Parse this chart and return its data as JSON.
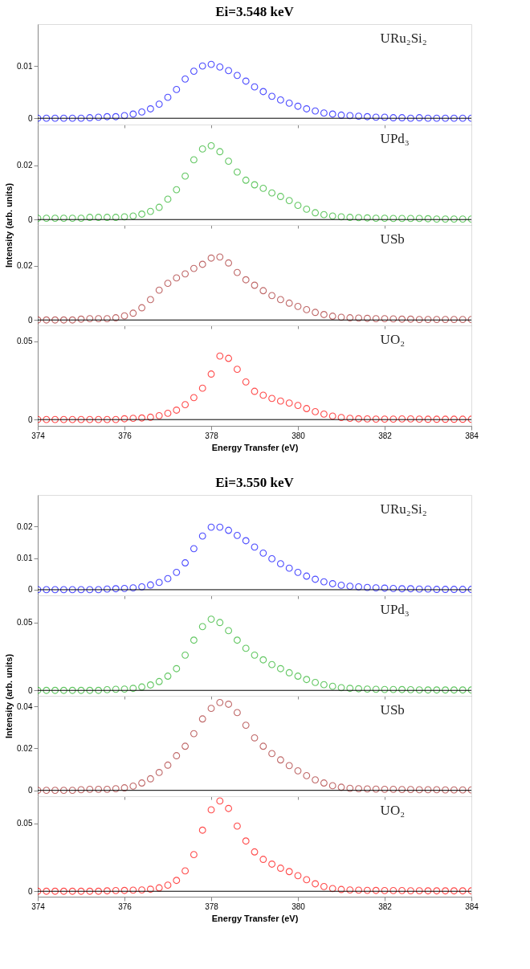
{
  "chart_data": [
    {
      "type": "scatter",
      "title": "Ei=3.548 keV",
      "marker": "circle",
      "tick_labels": "y",
      "xlim": [
        374,
        384
      ],
      "xticks": [
        374,
        376,
        378,
        380,
        382,
        384
      ],
      "ylim": [
        -0.0012,
        0.018
      ],
      "yticks": [
        0,
        0.01
      ],
      "ref_lines": [
        {
          "axis": "y",
          "value": 0
        }
      ],
      "x": [
        374.0,
        374.2,
        374.4,
        374.6,
        374.8,
        375.0,
        375.2,
        375.4,
        375.6,
        375.8,
        376.0,
        376.2,
        376.4,
        376.6,
        376.8,
        377.0,
        377.2,
        377.4,
        377.6,
        377.8,
        378.0,
        378.2,
        378.4,
        378.6,
        378.8,
        379.0,
        379.2,
        379.4,
        379.6,
        379.8,
        380.0,
        380.2,
        380.4,
        380.6,
        380.8,
        381.0,
        381.2,
        381.4,
        381.6,
        381.8,
        382.0,
        382.2,
        382.4,
        382.6,
        382.8,
        383.0,
        383.2,
        383.4,
        383.6,
        383.8,
        384.0
      ],
      "series": [
        {
          "name": "URu₂Si₂",
          "color": "#0000ff",
          "values": [
            0,
            0,
            0,
            0,
            0,
            0,
            0.0001,
            0.0002,
            0.0003,
            0.0003,
            0.0005,
            0.0008,
            0.0012,
            0.0018,
            0.0027,
            0.004,
            0.0055,
            0.0075,
            0.009,
            0.01,
            0.0103,
            0.0098,
            0.0091,
            0.0082,
            0.0071,
            0.006,
            0.0051,
            0.0042,
            0.0035,
            0.0029,
            0.0023,
            0.0018,
            0.0014,
            0.001,
            0.0008,
            0.0006,
            0.0005,
            0.0004,
            0.0003,
            0.0002,
            0.0002,
            0.0001,
            0.0001,
            0,
            0.0001,
            0,
            0,
            0,
            0,
            0,
            0
          ]
        }
      ]
    },
    {
      "type": "scatter",
      "ylabel": "Intensity (arb. units)",
      "marker": "circle",
      "tick_labels": "y",
      "xlim": [
        374,
        384
      ],
      "xticks": [
        374,
        376,
        378,
        380,
        382,
        384
      ],
      "ylim": [
        -0.002,
        0.035
      ],
      "yticks": [
        0,
        0.02
      ],
      "ref_lines": [
        {
          "axis": "y",
          "value": 0
        }
      ],
      "x": [
        374.0,
        374.2,
        374.4,
        374.6,
        374.8,
        375.0,
        375.2,
        375.4,
        375.6,
        375.8,
        376.0,
        376.2,
        376.4,
        376.6,
        376.8,
        377.0,
        377.2,
        377.4,
        377.6,
        377.8,
        378.0,
        378.2,
        378.4,
        378.6,
        378.8,
        379.0,
        379.2,
        379.4,
        379.6,
        379.8,
        380.0,
        380.2,
        380.4,
        380.6,
        380.8,
        381.0,
        381.2,
        381.4,
        381.6,
        381.8,
        382.0,
        382.2,
        382.4,
        382.6,
        382.8,
        383.0,
        383.2,
        383.4,
        383.6,
        383.8,
        384.0
      ],
      "series": [
        {
          "name": "UPd₃",
          "color": "#22b022",
          "values": [
            0.0005,
            0.0005,
            0.0005,
            0.0005,
            0.0005,
            0.0005,
            0.0008,
            0.0008,
            0.0008,
            0.0008,
            0.001,
            0.0013,
            0.002,
            0.003,
            0.0045,
            0.0075,
            0.011,
            0.016,
            0.022,
            0.026,
            0.0272,
            0.025,
            0.0215,
            0.0175,
            0.0145,
            0.0128,
            0.0115,
            0.0098,
            0.0085,
            0.007,
            0.0052,
            0.0038,
            0.0025,
            0.0018,
            0.0013,
            0.001,
            0.0008,
            0.0007,
            0.0006,
            0.0005,
            0.0005,
            0.0004,
            0.0004,
            0.0004,
            0.0004,
            0.0003,
            0.0002,
            0.0002,
            0.0002,
            0.0002,
            0.0002
          ]
        }
      ]
    },
    {
      "type": "scatter",
      "marker": "circle",
      "tick_labels": "y",
      "xlim": [
        374,
        384
      ],
      "xticks": [
        374,
        376,
        378,
        380,
        382,
        384
      ],
      "ylim": [
        -0.002,
        0.035
      ],
      "yticks": [
        0,
        0.02
      ],
      "ref_lines": [
        {
          "axis": "y",
          "value": 0
        }
      ],
      "x": [
        374.0,
        374.2,
        374.4,
        374.6,
        374.8,
        375.0,
        375.2,
        375.4,
        375.6,
        375.8,
        376.0,
        376.2,
        376.4,
        376.6,
        376.8,
        377.0,
        377.2,
        377.4,
        377.6,
        377.8,
        378.0,
        378.2,
        378.4,
        378.6,
        378.8,
        379.0,
        379.2,
        379.4,
        379.6,
        379.8,
        380.0,
        380.2,
        380.4,
        380.6,
        380.8,
        381.0,
        381.2,
        381.4,
        381.6,
        381.8,
        382.0,
        382.2,
        382.4,
        382.6,
        382.8,
        383.0,
        383.2,
        383.4,
        383.6,
        383.8,
        384.0
      ],
      "series": [
        {
          "name": "USb",
          "color": "#a52a2a",
          "values": [
            0,
            0,
            0,
            0,
            0,
            0.0003,
            0.0005,
            0.0005,
            0.0005,
            0.0008,
            0.0015,
            0.0025,
            0.0045,
            0.0075,
            0.011,
            0.0135,
            0.0155,
            0.017,
            0.019,
            0.0205,
            0.0228,
            0.0232,
            0.021,
            0.0175,
            0.0148,
            0.0128,
            0.0108,
            0.009,
            0.0075,
            0.0062,
            0.005,
            0.0038,
            0.0028,
            0.002,
            0.0014,
            0.001,
            0.0008,
            0.0007,
            0.0006,
            0.0005,
            0.0005,
            0.0004,
            0.0003,
            0.0003,
            0.0002,
            0.0002,
            0.0002,
            0.0002,
            0.0002,
            0.0002,
            0.0002
          ]
        }
      ]
    },
    {
      "type": "scatter",
      "xlabel": "Energy Transfer (eV)",
      "marker": "circle",
      "xlim": [
        374,
        384
      ],
      "xticks": [
        374,
        376,
        378,
        380,
        382,
        384
      ],
      "ylim": [
        -0.004,
        0.06
      ],
      "yticks": [
        0,
        0.05
      ],
      "ref_lines": [
        {
          "axis": "y",
          "value": 0
        }
      ],
      "x": [
        374.0,
        374.2,
        374.4,
        374.6,
        374.8,
        375.0,
        375.2,
        375.4,
        375.6,
        375.8,
        376.0,
        376.2,
        376.4,
        376.6,
        376.8,
        377.0,
        377.2,
        377.4,
        377.6,
        377.8,
        378.0,
        378.2,
        378.4,
        378.6,
        378.8,
        379.0,
        379.2,
        379.4,
        379.6,
        379.8,
        380.0,
        380.2,
        380.4,
        380.6,
        380.8,
        381.0,
        381.2,
        381.4,
        381.6,
        381.8,
        382.0,
        382.2,
        382.4,
        382.6,
        382.8,
        383.0,
        383.2,
        383.4,
        383.6,
        383.8,
        384.0
      ],
      "series": [
        {
          "name": "UO₂",
          "color": "#ff0000",
          "values": [
            0,
            0,
            0,
            0,
            0,
            0,
            0,
            0,
            0,
            0,
            0.0005,
            0.0008,
            0.001,
            0.0015,
            0.0025,
            0.004,
            0.006,
            0.0095,
            0.014,
            0.02,
            0.029,
            0.0405,
            0.039,
            0.032,
            0.024,
            0.018,
            0.0155,
            0.0135,
            0.0118,
            0.0105,
            0.009,
            0.007,
            0.005,
            0.0035,
            0.0022,
            0.0013,
            0.0008,
            0.0005,
            0.0004,
            0.0003,
            0.0003,
            0.0003,
            0.0004,
            0.0004,
            0.0003,
            0.0002,
            0.0002,
            0.0002,
            0.0002,
            0.0002,
            0.0002
          ]
        }
      ]
    },
    {
      "type": "scatter",
      "title": "Ei=3.550 keV",
      "marker": "circle",
      "tick_labels": "y",
      "xlim": [
        374,
        384
      ],
      "xticks": [
        374,
        376,
        378,
        380,
        382,
        384
      ],
      "ylim": [
        -0.0018,
        0.03
      ],
      "yticks": [
        0,
        0.01,
        0.02
      ],
      "ref_lines": [
        {
          "axis": "y",
          "value": 0
        }
      ],
      "x": [
        374.0,
        374.2,
        374.4,
        374.6,
        374.8,
        375.0,
        375.2,
        375.4,
        375.6,
        375.8,
        376.0,
        376.2,
        376.4,
        376.6,
        376.8,
        377.0,
        377.2,
        377.4,
        377.6,
        377.8,
        378.0,
        378.2,
        378.4,
        378.6,
        378.8,
        379.0,
        379.2,
        379.4,
        379.6,
        379.8,
        380.0,
        380.2,
        380.4,
        380.6,
        380.8,
        381.0,
        381.2,
        381.4,
        381.6,
        381.8,
        382.0,
        382.2,
        382.4,
        382.6,
        382.8,
        383.0,
        383.2,
        383.4,
        383.6,
        383.8,
        384.0
      ],
      "series": [
        {
          "name": "URu₂Si₂",
          "color": "#0000ff",
          "values": [
            0,
            0,
            0,
            0,
            0,
            0,
            0,
            0,
            0.0002,
            0.0003,
            0.0004,
            0.0006,
            0.0009,
            0.0015,
            0.0023,
            0.0035,
            0.0055,
            0.0085,
            0.013,
            0.017,
            0.0198,
            0.0198,
            0.0188,
            0.0172,
            0.0155,
            0.0135,
            0.0116,
            0.0098,
            0.0082,
            0.0068,
            0.0055,
            0.0043,
            0.0033,
            0.0025,
            0.0019,
            0.0014,
            0.0011,
            0.0009,
            0.0007,
            0.0006,
            0.0005,
            0.0004,
            0.0003,
            0.0003,
            0.0002,
            0.0002,
            0.0001,
            0.0001,
            0.0001,
            0.0001,
            0.0001
          ]
        }
      ]
    },
    {
      "type": "scatter",
      "ylabel": "Intensity (arb. units)",
      "marker": "circle",
      "tick_labels": "y",
      "xlim": [
        374,
        384
      ],
      "xticks": [
        374,
        376,
        378,
        380,
        382,
        384
      ],
      "ylim": [
        -0.004,
        0.07
      ],
      "yticks": [
        0,
        0.05
      ],
      "ref_lines": [
        {
          "axis": "y",
          "value": 0
        }
      ],
      "x": [
        374.0,
        374.2,
        374.4,
        374.6,
        374.8,
        375.0,
        375.2,
        375.4,
        375.6,
        375.8,
        376.0,
        376.2,
        376.4,
        376.6,
        376.8,
        377.0,
        377.2,
        377.4,
        377.6,
        377.8,
        378.0,
        378.2,
        378.4,
        378.6,
        378.8,
        379.0,
        379.2,
        379.4,
        379.6,
        379.8,
        380.0,
        380.2,
        380.4,
        380.6,
        380.8,
        381.0,
        381.2,
        381.4,
        381.6,
        381.8,
        382.0,
        382.2,
        382.4,
        382.6,
        382.8,
        383.0,
        383.2,
        383.4,
        383.6,
        383.8,
        384.0
      ],
      "series": [
        {
          "name": "UPd₃",
          "color": "#22b022",
          "values": [
            0,
            0,
            0,
            0,
            0,
            0,
            0,
            0,
            0.0005,
            0.0008,
            0.001,
            0.0015,
            0.0025,
            0.004,
            0.0065,
            0.0105,
            0.016,
            0.026,
            0.037,
            0.047,
            0.0525,
            0.05,
            0.044,
            0.037,
            0.031,
            0.026,
            0.0225,
            0.019,
            0.016,
            0.013,
            0.0105,
            0.008,
            0.0058,
            0.0042,
            0.003,
            0.002,
            0.0015,
            0.0012,
            0.001,
            0.0008,
            0.0007,
            0.0007,
            0.0006,
            0.0005,
            0.0004,
            0.0003,
            0.0003,
            0.0003,
            0.0003,
            0.0003,
            0.0003
          ]
        }
      ]
    },
    {
      "type": "scatter",
      "marker": "circle",
      "tick_labels": "y",
      "xlim": [
        374,
        384
      ],
      "xticks": [
        374,
        376,
        378,
        380,
        382,
        384
      ],
      "ylim": [
        -0.0028,
        0.045
      ],
      "yticks": [
        0,
        0.02,
        0.04
      ],
      "ref_lines": [
        {
          "axis": "y",
          "value": 0
        }
      ],
      "x": [
        374.0,
        374.2,
        374.4,
        374.6,
        374.8,
        375.0,
        375.2,
        375.4,
        375.6,
        375.8,
        376.0,
        376.2,
        376.4,
        376.6,
        376.8,
        377.0,
        377.2,
        377.4,
        377.6,
        377.8,
        378.0,
        378.2,
        378.4,
        378.6,
        378.8,
        379.0,
        379.2,
        379.4,
        379.6,
        379.8,
        380.0,
        380.2,
        380.4,
        380.6,
        380.8,
        381.0,
        381.2,
        381.4,
        381.6,
        381.8,
        382.0,
        382.2,
        382.4,
        382.6,
        382.8,
        383.0,
        383.2,
        383.4,
        383.6,
        383.8,
        384.0
      ],
      "series": [
        {
          "name": "USb",
          "color": "#a52a2a",
          "values": [
            0,
            0,
            0,
            0,
            0,
            0.0003,
            0.0005,
            0.0005,
            0.0005,
            0.0008,
            0.0012,
            0.002,
            0.0035,
            0.0055,
            0.0085,
            0.012,
            0.0165,
            0.021,
            0.027,
            0.034,
            0.039,
            0.0418,
            0.041,
            0.037,
            0.031,
            0.025,
            0.021,
            0.0175,
            0.0145,
            0.0118,
            0.0093,
            0.007,
            0.005,
            0.0035,
            0.0022,
            0.0015,
            0.001,
            0.0008,
            0.0007,
            0.0006,
            0.0005,
            0.0005,
            0.0004,
            0.0004,
            0.0003,
            0.0003,
            0.0003,
            0.0002,
            0.0002,
            0.0002,
            0.0002
          ]
        }
      ]
    },
    {
      "type": "scatter",
      "xlabel": "Energy Transfer (eV)",
      "marker": "circle",
      "xlim": [
        374,
        384
      ],
      "xticks": [
        374,
        376,
        378,
        380,
        382,
        384
      ],
      "ylim": [
        -0.004,
        0.07
      ],
      "yticks": [
        0,
        0.05
      ],
      "ref_lines": [
        {
          "axis": "y",
          "value": 0
        }
      ],
      "x": [
        374.0,
        374.2,
        374.4,
        374.6,
        374.8,
        375.0,
        375.2,
        375.4,
        375.6,
        375.8,
        376.0,
        376.2,
        376.4,
        376.6,
        376.8,
        377.0,
        377.2,
        377.4,
        377.6,
        377.8,
        378.0,
        378.2,
        378.4,
        378.6,
        378.8,
        379.0,
        379.2,
        379.4,
        379.6,
        379.8,
        380.0,
        380.2,
        380.4,
        380.6,
        380.8,
        381.0,
        381.2,
        381.4,
        381.6,
        381.8,
        382.0,
        382.2,
        382.4,
        382.6,
        382.8,
        383.0,
        383.2,
        383.4,
        383.6,
        383.8,
        384.0
      ],
      "series": [
        {
          "name": "UO₂",
          "color": "#ff0000",
          "values": [
            0,
            0,
            0,
            0,
            0,
            0,
            0,
            0,
            0.0003,
            0.0005,
            0.0006,
            0.0008,
            0.001,
            0.0015,
            0.0025,
            0.0045,
            0.008,
            0.015,
            0.027,
            0.045,
            0.06,
            0.0665,
            0.061,
            0.048,
            0.037,
            0.029,
            0.0235,
            0.02,
            0.017,
            0.0145,
            0.0115,
            0.0085,
            0.0055,
            0.0035,
            0.002,
            0.0013,
            0.001,
            0.0008,
            0.0007,
            0.0006,
            0.0005,
            0.0005,
            0.0005,
            0.0004,
            0.0004,
            0.0003,
            0.0003,
            0.0003,
            0.0003,
            0.0003,
            0.0003
          ]
        }
      ]
    }
  ]
}
